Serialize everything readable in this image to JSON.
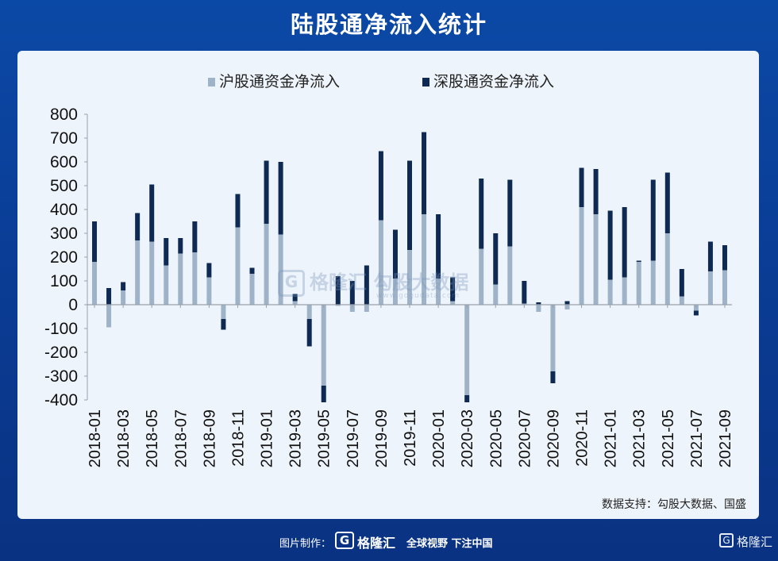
{
  "header": {
    "title": "陆股通净流入统计"
  },
  "watermark": {
    "text": "格隆汇  勾股大数据",
    "logo_letter": "G",
    "url": "www.gogudata.com"
  },
  "source_note": "数据支持：勾股大数据、国盛",
  "footer": {
    "credit_label": "图片制作：",
    "logo_letter": "G",
    "brand": "格隆汇",
    "slogan": "全球视野 下注中国",
    "corner_logo_letter": "G",
    "corner_brand": "格隆汇"
  },
  "colors": {
    "sh": "#9fb3c8",
    "sz": "#0e2a52",
    "axis": "#9aa0a8"
  },
  "chart_data": {
    "type": "bar",
    "stacked": true,
    "legend_position": "top",
    "ylim": [
      -400,
      800
    ],
    "yticks": [
      800,
      700,
      600,
      500,
      400,
      300,
      200,
      100,
      0,
      -100,
      -200,
      -300,
      -400
    ],
    "tick_labels": [
      "2018-01",
      "2018-03",
      "2018-05",
      "2018-07",
      "2018-09",
      "2018-11",
      "2019-01",
      "2019-03",
      "2019-05",
      "2019-07",
      "2019-09",
      "2019-11",
      "2020-01",
      "2020-03",
      "2020-05",
      "2020-07",
      "2020-09",
      "2020-11",
      "2021-01",
      "2021-03",
      "2021-05",
      "2021-07",
      "2021-09"
    ],
    "categories": [
      "2018-01",
      "2018-02",
      "2018-03",
      "2018-04",
      "2018-05",
      "2018-06",
      "2018-07",
      "2018-08",
      "2018-09",
      "2018-10",
      "2018-11",
      "2018-12",
      "2019-01",
      "2019-02",
      "2019-03",
      "2019-04",
      "2019-05",
      "2019-06",
      "2019-07",
      "2019-08",
      "2019-09",
      "2019-10",
      "2019-11",
      "2019-12",
      "2020-01",
      "2020-02",
      "2020-03",
      "2020-04",
      "2020-05",
      "2020-06",
      "2020-07",
      "2020-08",
      "2020-09",
      "2020-10",
      "2020-11",
      "2020-12",
      "2021-01",
      "2021-02",
      "2021-03",
      "2021-04",
      "2021-05",
      "2021-06",
      "2021-07",
      "2021-08",
      "2021-09"
    ],
    "series": [
      {
        "name": "沪股通资金净流入",
        "values": [
          180,
          -95,
          60,
          270,
          265,
          165,
          215,
          220,
          115,
          -60,
          325,
          130,
          340,
          295,
          15,
          -60,
          -340,
          -5,
          -30,
          -30,
          355,
          110,
          230,
          380,
          110,
          15,
          -380,
          235,
          85,
          245,
          5,
          -30,
          -280,
          -20,
          410,
          380,
          105,
          115,
          180,
          185,
          300,
          35,
          -25,
          140,
          145
        ]
      },
      {
        "name": "深股通资金净流入",
        "values": [
          170,
          70,
          35,
          115,
          240,
          115,
          65,
          130,
          60,
          -45,
          140,
          25,
          265,
          305,
          30,
          -115,
          -70,
          120,
          100,
          165,
          290,
          205,
          375,
          345,
          270,
          100,
          -30,
          295,
          215,
          280,
          95,
          10,
          -50,
          15,
          165,
          190,
          290,
          295,
          5,
          340,
          255,
          115,
          -20,
          125,
          105
        ]
      }
    ]
  }
}
